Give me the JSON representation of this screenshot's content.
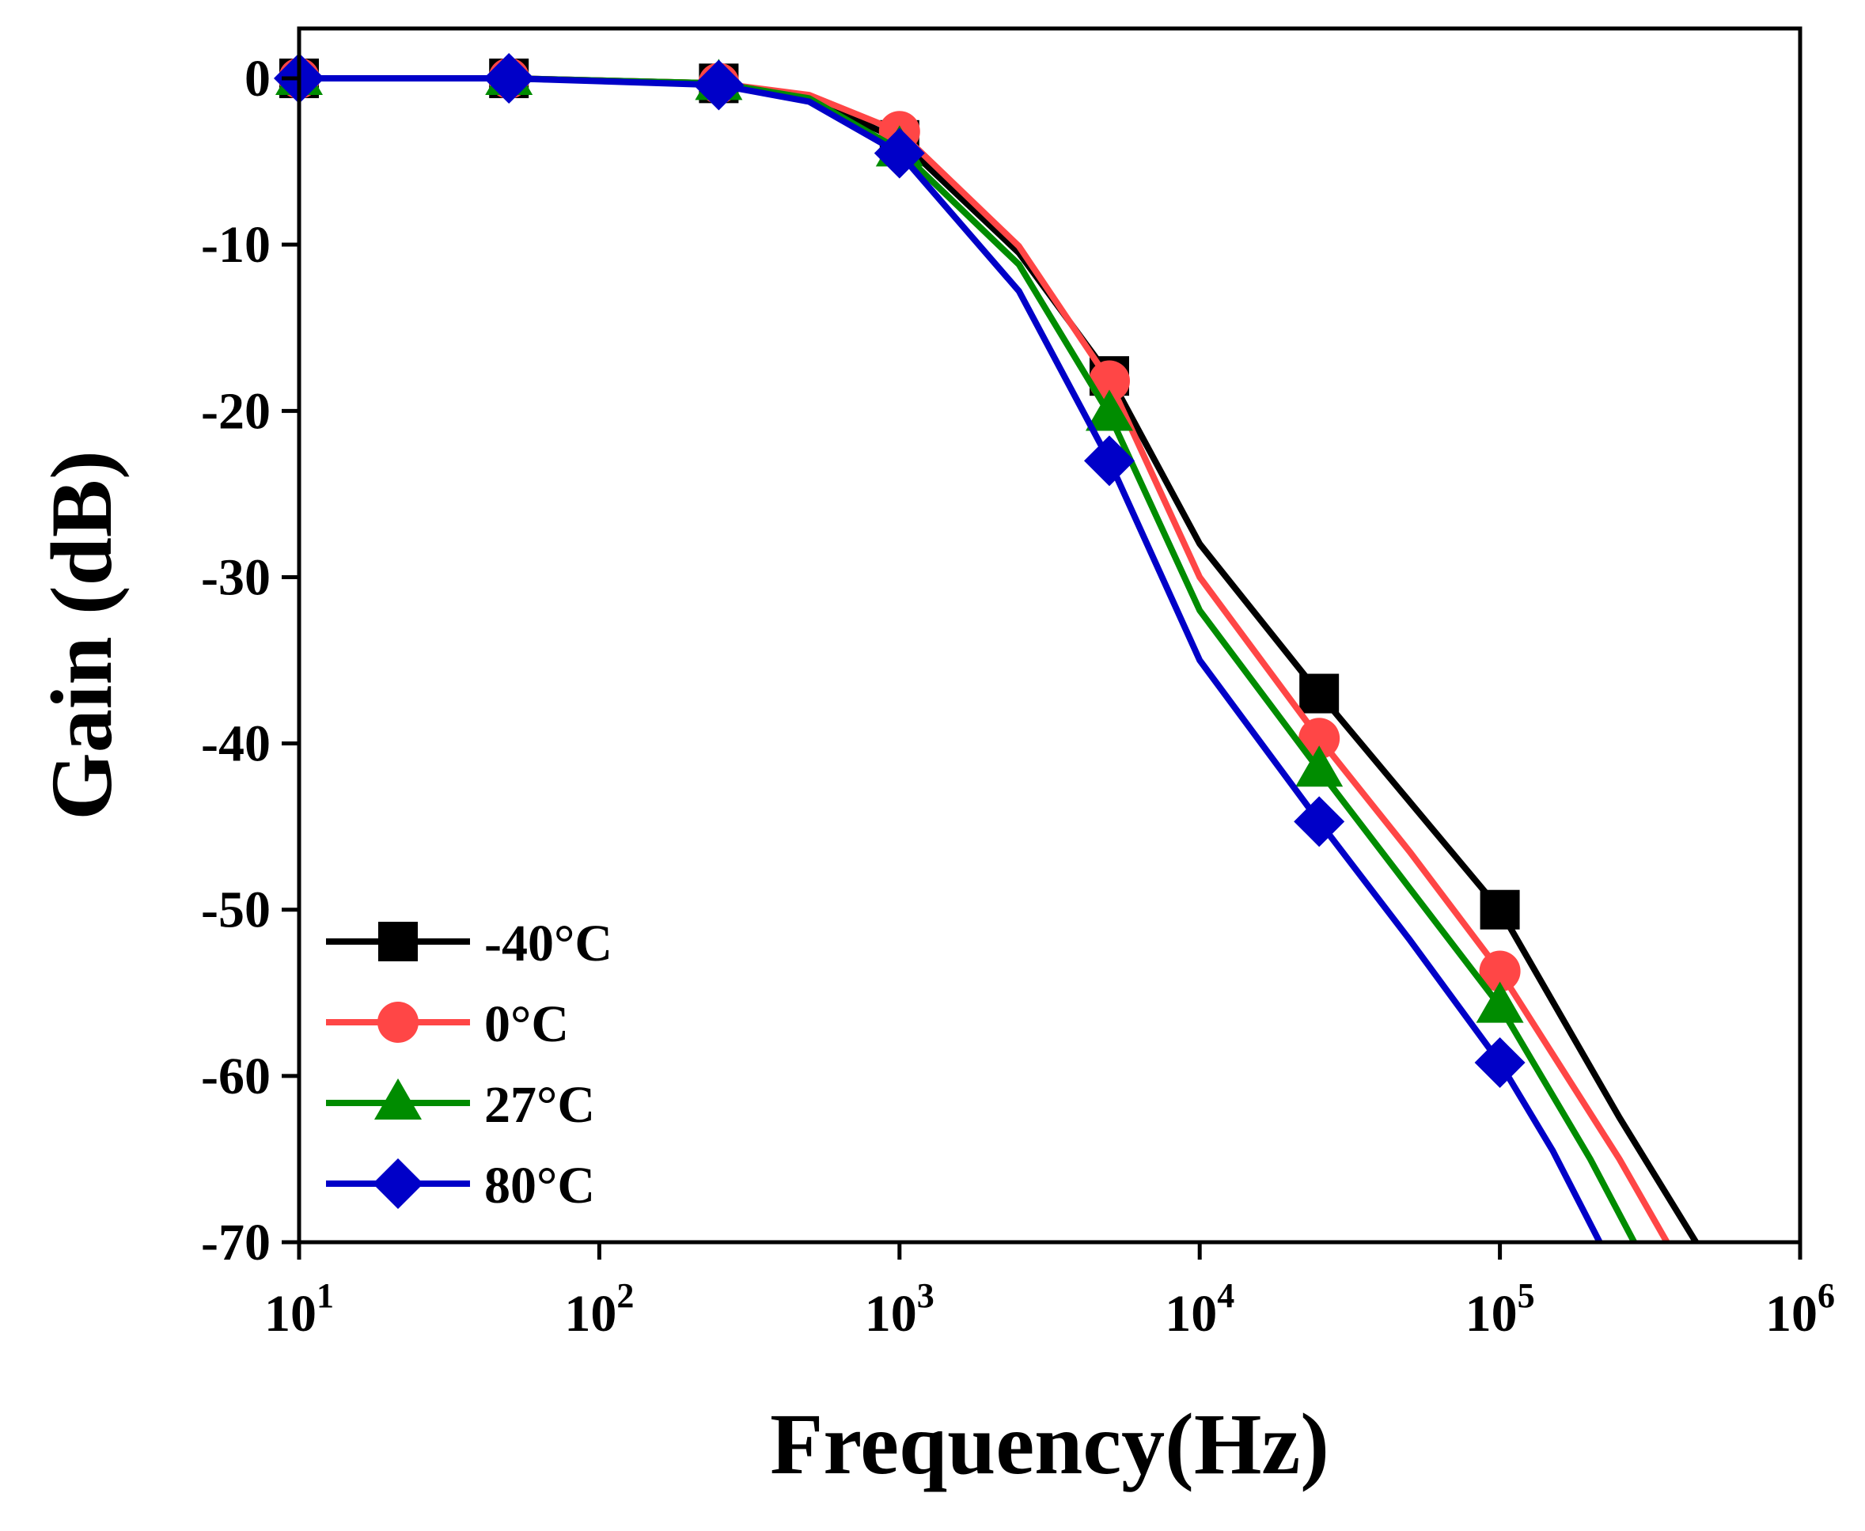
{
  "chart_data": {
    "type": "line",
    "title": "",
    "xlabel": "Frequency(Hz)",
    "ylabel": "Gain (dB)",
    "xscale": "log",
    "xlim": [
      10,
      1000000
    ],
    "ylim": [
      -70,
      3
    ],
    "grid": false,
    "legend_position": "bottom-left",
    "x_ticks": [
      {
        "base": "10",
        "exp": "1",
        "value": 10
      },
      {
        "base": "10",
        "exp": "2",
        "value": 100
      },
      {
        "base": "10",
        "exp": "3",
        "value": 1000
      },
      {
        "base": "10",
        "exp": "4",
        "value": 10000
      },
      {
        "base": "10",
        "exp": "5",
        "value": 100000
      },
      {
        "base": "10",
        "exp": "6",
        "value": 1000000
      }
    ],
    "y_ticks": [
      {
        "label": "0",
        "value": 0
      },
      {
        "label": "-10",
        "value": -10
      },
      {
        "label": "-20",
        "value": -20
      },
      {
        "label": "-30",
        "value": -30
      },
      {
        "label": "-40",
        "value": -40
      },
      {
        "label": "-50",
        "value": -50
      },
      {
        "label": "-60",
        "value": -60
      },
      {
        "label": "-70",
        "value": -70
      }
    ],
    "series": [
      {
        "name": "-40°C",
        "color": "#000000",
        "marker": "square",
        "x": [
          10,
          50,
          250,
          500,
          1000,
          2500,
          5000,
          10000,
          25000,
          50000,
          100000,
          250000,
          450000
        ],
        "y": [
          0,
          0,
          -0.3,
          -1.2,
          -3.7,
          -10.5,
          -17.9,
          -28,
          -37,
          -43.5,
          -50,
          -62.5,
          -70
        ],
        "marker_x": [
          10,
          50,
          250,
          1000,
          5000,
          25000,
          100000
        ],
        "marker_y": [
          0,
          0,
          -0.3,
          -3.7,
          -17.9,
          -37,
          -50
        ]
      },
      {
        "name": "0°C",
        "color": "#ff4646",
        "marker": "circle",
        "x": [
          10,
          50,
          250,
          500,
          1000,
          2500,
          5000,
          10000,
          25000,
          50000,
          100000,
          250000,
          360000
        ],
        "y": [
          0,
          0,
          -0.3,
          -1.0,
          -3.2,
          -10.1,
          -18.2,
          -30,
          -39.7,
          -46.5,
          -53.7,
          -65,
          -70
        ],
        "marker_x": [
          10,
          50,
          250,
          1000,
          5000,
          25000,
          100000
        ],
        "marker_y": [
          0,
          0,
          -0.3,
          -3.2,
          -18.2,
          -39.7,
          -53.7
        ]
      },
      {
        "name": "27°C",
        "color": "#008c00",
        "marker": "triangle",
        "x": [
          10,
          50,
          250,
          500,
          1000,
          2500,
          5000,
          10000,
          25000,
          50000,
          100000,
          200000,
          280000
        ],
        "y": [
          0,
          0,
          -0.3,
          -1.2,
          -4.3,
          -11.2,
          -20.2,
          -32,
          -41.6,
          -48.7,
          -55.8,
          -65,
          -70
        ],
        "marker_x": [
          10,
          50,
          250,
          1000,
          5000,
          25000,
          100000
        ],
        "marker_y": [
          0,
          0,
          -0.3,
          -4.3,
          -20.2,
          -41.6,
          -55.8
        ]
      },
      {
        "name": "80°C",
        "color": "#0000c8",
        "marker": "diamond",
        "x": [
          10,
          50,
          250,
          500,
          1000,
          2500,
          5000,
          10000,
          25000,
          50000,
          100000,
          150000,
          215000
        ],
        "y": [
          0,
          0,
          -0.4,
          -1.4,
          -4.5,
          -12.8,
          -23,
          -35,
          -44.7,
          -51.8,
          -59.2,
          -64.5,
          -70
        ],
        "marker_x": [
          10,
          50,
          250,
          1000,
          5000,
          25000,
          100000
        ],
        "marker_y": [
          0,
          0,
          -0.4,
          -4.5,
          -23,
          -44.7,
          -59.2
        ]
      }
    ]
  }
}
